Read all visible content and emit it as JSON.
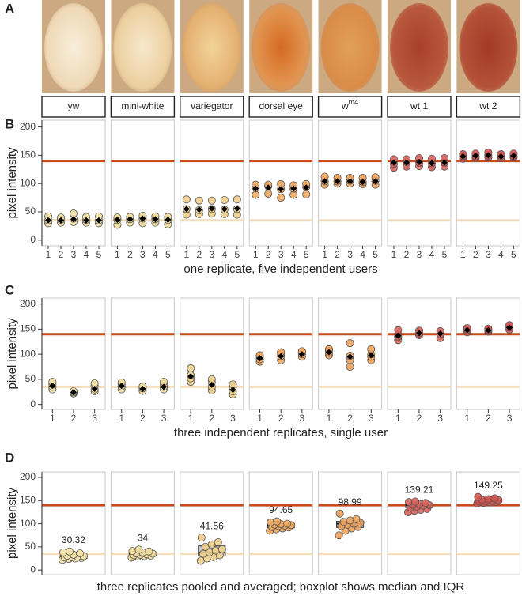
{
  "photos_panel": "A",
  "strains": [
    {
      "name": "yw",
      "color": "#f4e3a6"
    },
    {
      "name": "mini-white",
      "color": "#f1dc9c"
    },
    {
      "name": "variegator",
      "color": "#edcf8a"
    },
    {
      "name": "dorsal eye",
      "color": "#f0a862"
    },
    {
      "name": "w",
      "sup": "m4",
      "color": "#eda35e"
    },
    {
      "name": "wt 1",
      "color": "#d8615a"
    },
    {
      "name": "wt 2",
      "color": "#d4534f"
    }
  ],
  "chart_data": [
    {
      "type": "strip",
      "panel": "B",
      "y_label": "pixel intensity",
      "x_label": "one replicate, five independent users",
      "categories": [
        "1",
        "2",
        "3",
        "4",
        "5"
      ],
      "ylim": [
        -10,
        212
      ],
      "yticks": [
        0,
        50,
        100,
        150,
        200
      ],
      "hlines": [
        {
          "value": 140,
          "color": "#c94b1c"
        },
        {
          "value": 35,
          "color": "#f3dcb9"
        }
      ],
      "facets": [
        {
          "values": [
            [
              30,
              35,
              42
            ],
            [
              31,
              36,
              40
            ],
            [
              32,
              38,
              47
            ],
            [
              31,
              36,
              41
            ],
            [
              30,
              35,
              42
            ]
          ],
          "means": [
            35,
            35,
            37,
            35,
            35
          ]
        },
        {
          "values": [
            [
              27,
              36,
              40
            ],
            [
              31,
              37,
              41
            ],
            [
              30,
              38,
              43
            ],
            [
              31,
              37,
              42
            ],
            [
              28,
              36,
              41
            ]
          ],
          "means": [
            36,
            37,
            38,
            37,
            36
          ]
        },
        {
          "values": [
            [
              45,
              55,
              72
            ],
            [
              46,
              53,
              70
            ],
            [
              47,
              55,
              70
            ],
            [
              46,
              54,
              71
            ],
            [
              45,
              55,
              72
            ]
          ],
          "means": [
            55,
            54,
            56,
            55,
            56
          ]
        },
        {
          "values": [
            [
              80,
              92,
              98
            ],
            [
              82,
              95,
              98
            ],
            [
              75,
              90,
              99
            ],
            [
              80,
              91,
              97
            ],
            [
              81,
              94,
              99
            ]
          ],
          "means": [
            91,
            93,
            90,
            91,
            93
          ]
        },
        {
          "values": [
            [
              98,
              104,
              112
            ],
            [
              100,
              104,
              110
            ],
            [
              100,
              105,
              110
            ],
            [
              99,
              103,
              110
            ],
            [
              98,
              105,
              111
            ]
          ],
          "means": [
            104,
            104,
            104,
            103,
            104
          ]
        },
        {
          "values": [
            [
              128,
              135,
              143
            ],
            [
              130,
              138,
              143
            ],
            [
              131,
              137,
              145
            ],
            [
              129,
              136,
              144
            ],
            [
              130,
              137,
              145
            ]
          ],
          "means": [
            137,
            137,
            138,
            136,
            137
          ]
        },
        {
          "values": [
            [
              144,
              148,
              152
            ],
            [
              145,
              148,
              153
            ],
            [
              146,
              150,
              155
            ],
            [
              145,
              149,
              152
            ],
            [
              146,
              149,
              153
            ]
          ],
          "means": [
            148,
            149,
            150,
            148,
            149
          ]
        }
      ]
    },
    {
      "type": "strip",
      "panel": "C",
      "y_label": "pixel intensity",
      "x_label": "three independent replicates, single user",
      "categories": [
        "1",
        "2",
        "3"
      ],
      "ylim": [
        -10,
        212
      ],
      "yticks": [
        0,
        50,
        100,
        150,
        200
      ],
      "hlines": [
        {
          "value": 140,
          "color": "#c94b1c"
        },
        {
          "value": 35,
          "color": "#f3dcb9"
        }
      ],
      "facets": [
        {
          "values": [
            [
              30,
              35,
              40,
              45
            ],
            [
              22,
              24,
              26
            ],
            [
              26,
              30,
              38,
              42
            ]
          ],
          "means": [
            37,
            24,
            31
          ]
        },
        {
          "values": [
            [
              30,
              36,
              40,
              44
            ],
            [
              27,
              32,
              36
            ],
            [
              30,
              35,
              40,
              45
            ]
          ],
          "means": [
            37,
            31,
            35
          ]
        },
        {
          "values": [
            [
              45,
              52,
              58,
              72
            ],
            [
              28,
              35,
              44,
              50
            ],
            [
              20,
              26,
              34,
              40
            ]
          ],
          "means": [
            56,
            39,
            29
          ]
        },
        {
          "values": [
            [
              85,
              90,
              95,
              98
            ],
            [
              88,
              96,
              100,
              104
            ],
            [
              95,
              100,
              104,
              106
            ]
          ],
          "means": [
            92,
            96,
            100
          ]
        },
        {
          "values": [
            [
              98,
              103,
              108,
              110
            ],
            [
              75,
              88,
              97,
              122
            ],
            [
              88,
              95,
              100,
              110
            ]
          ],
          "means": [
            104,
            95,
            98
          ]
        },
        {
          "values": [
            [
              128,
              135,
              140,
              148
            ],
            [
              138,
              142,
              147
            ],
            [
              132,
              140,
              146
            ]
          ],
          "means": [
            137,
            142,
            141
          ]
        },
        {
          "values": [
            [
              144,
              148,
              152
            ],
            [
              145,
              148,
              151
            ],
            [
              149,
              153,
              158
            ]
          ],
          "means": [
            148,
            148,
            153
          ]
        }
      ]
    },
    {
      "type": "box",
      "panel": "D",
      "y_label": "pixel intensity",
      "x_label": "three replicates pooled and averaged; boxplot shows median and IQR",
      "ylim": [
        -10,
        212
      ],
      "yticks": [
        0,
        50,
        100,
        150,
        200
      ],
      "hlines": [
        {
          "value": 140,
          "color": "#c94b1c"
        },
        {
          "value": 35,
          "color": "#f3dcb9"
        }
      ],
      "facets": [
        {
          "values": [
            22,
            24,
            25,
            26,
            27,
            28,
            29,
            30,
            31,
            33,
            36,
            38,
            40
          ],
          "q1": 25,
          "median": 28,
          "q3": 31,
          "mean": 30.32
        },
        {
          "values": [
            27,
            29,
            30,
            31,
            32,
            33,
            34,
            35,
            36,
            38,
            40,
            41,
            44
          ],
          "q1": 30,
          "median": 33,
          "q3": 36,
          "mean": 34
        },
        {
          "values": [
            20,
            25,
            28,
            32,
            35,
            38,
            42,
            45,
            50,
            55,
            60,
            70
          ],
          "q1": 30,
          "median": 38,
          "q3": 52,
          "mean": 41.56
        },
        {
          "values": [
            85,
            88,
            90,
            92,
            93,
            95,
            96,
            97,
            98,
            99,
            100,
            103,
            105
          ],
          "q1": 91,
          "median": 96,
          "q3": 99,
          "mean": 94.65
        },
        {
          "values": [
            75,
            85,
            90,
            93,
            95,
            98,
            100,
            102,
            104,
            107,
            110,
            122
          ],
          "q1": 92,
          "median": 100,
          "q3": 105,
          "mean": 98.99
        },
        {
          "values": [
            125,
            128,
            130,
            132,
            135,
            137,
            139,
            140,
            141,
            143,
            145,
            147,
            148
          ],
          "q1": 135,
          "median": 140,
          "q3": 143,
          "mean": 139.21
        },
        {
          "values": [
            144,
            145,
            146,
            147,
            148,
            149,
            150,
            151,
            152,
            153,
            155,
            158
          ],
          "q1": 147,
          "median": 149,
          "q3": 151,
          "mean": 149.25
        }
      ]
    }
  ]
}
